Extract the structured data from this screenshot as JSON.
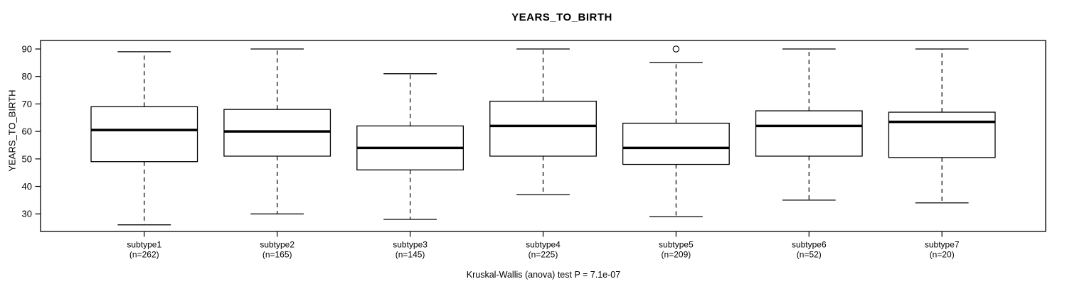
{
  "chart_data": {
    "type": "boxplot",
    "title": "YEARS_TO_BIRTH",
    "ylabel": "YEARS_TO_BIRTH",
    "footer": "Kruskal-Wallis (anova) test P = 7.1e-07",
    "yticks": [
      30,
      40,
      50,
      60,
      70,
      80,
      90
    ],
    "ylim": [
      23.6,
      93.1
    ],
    "grid": false,
    "legend": "none",
    "groups": [
      {
        "label": "subtype1",
        "sublabel": "(n=262)",
        "n": 262,
        "whisker_low": 26,
        "q1": 49,
        "median": 60.5,
        "q3": 69,
        "whisker_high": 89,
        "outliers": []
      },
      {
        "label": "subtype2",
        "sublabel": "(n=165)",
        "n": 165,
        "whisker_low": 30,
        "q1": 51,
        "median": 60,
        "q3": 68,
        "whisker_high": 90,
        "outliers": []
      },
      {
        "label": "subtype3",
        "sublabel": "(n=145)",
        "n": 145,
        "whisker_low": 28,
        "q1": 46,
        "median": 54,
        "q3": 62,
        "whisker_high": 81,
        "outliers": []
      },
      {
        "label": "subtype4",
        "sublabel": "(n=225)",
        "n": 225,
        "whisker_low": 37,
        "q1": 51,
        "median": 62,
        "q3": 71,
        "whisker_high": 90,
        "outliers": []
      },
      {
        "label": "subtype5",
        "sublabel": "(n=209)",
        "n": 209,
        "whisker_low": 29,
        "q1": 48,
        "median": 54,
        "q3": 63,
        "whisker_high": 85,
        "outliers": [
          90
        ]
      },
      {
        "label": "subtype6",
        "sublabel": "(n=52)",
        "n": 52,
        "whisker_low": 35,
        "q1": 51,
        "median": 62,
        "q3": 67.5,
        "whisker_high": 90,
        "outliers": []
      },
      {
        "label": "subtype7",
        "sublabel": "(n=20)",
        "n": 20,
        "whisker_low": 34,
        "q1": 50.5,
        "median": 63.5,
        "q3": 67,
        "whisker_high": 90,
        "outliers": []
      }
    ]
  }
}
